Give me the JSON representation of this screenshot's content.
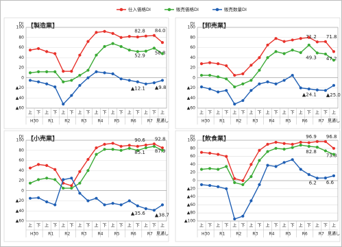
{
  "legend": [
    {
      "name": "仕入価格DI",
      "color": "#e8312a"
    },
    {
      "name": "販売価格DI",
      "color": "#3aaa35"
    },
    {
      "name": "販売数量DI",
      "color": "#1f5fb4"
    }
  ],
  "chart_data": [
    {
      "type": "line",
      "title": "【製造業】",
      "y_label": "DI",
      "categories": [
        "上",
        "下",
        "上",
        "下",
        "上",
        "下",
        "上",
        "下",
        "上",
        "下",
        "上",
        "下",
        "上",
        "下",
        "上",
        "下",
        "上"
      ],
      "year_labels": [
        "H30",
        "R1",
        "R2",
        "R3",
        "R4",
        "R5",
        "R6",
        "R7",
        "見通し"
      ],
      "ylim": [
        -60,
        100
      ],
      "yticks": [
        {
          "value": -60,
          "label": "▲60"
        },
        {
          "value": -40,
          "label": "▲40"
        },
        {
          "value": -20,
          "label": "▲20"
        },
        0,
        20,
        40,
        60,
        80,
        100
      ],
      "series": [
        {
          "color": "#e8312a",
          "values": [
            55,
            58,
            52,
            48,
            13,
            13,
            45,
            72,
            90,
            92,
            88,
            80,
            82,
            81,
            82.8,
            84.0,
            70
          ],
          "value_labels": [
            null,
            null,
            null,
            null,
            null,
            null,
            null,
            null,
            null,
            null,
            null,
            null,
            null,
            null,
            "82.8",
            "84.0",
            null
          ]
        },
        {
          "color": "#3aaa35",
          "values": [
            10,
            12,
            12,
            12,
            -8,
            -5,
            5,
            15,
            45,
            62,
            68,
            62,
            55,
            52,
            52.9,
            58.8,
            48
          ],
          "value_labels": [
            null,
            null,
            null,
            null,
            null,
            null,
            null,
            null,
            null,
            null,
            null,
            null,
            null,
            null,
            "52.9",
            "58.8",
            null
          ]
        },
        {
          "color": "#1f5fb4",
          "values": [
            -5,
            -8,
            -12,
            -18,
            -52,
            -35,
            -15,
            0,
            12,
            10,
            8,
            -2,
            -5,
            -8,
            -12.1,
            -9.8,
            -5
          ],
          "value_labels": [
            null,
            null,
            null,
            null,
            null,
            null,
            null,
            null,
            null,
            null,
            null,
            null,
            null,
            null,
            "▲12.1",
            "▲9.8",
            null
          ]
        }
      ]
    },
    {
      "type": "line",
      "title": "【卸売業】",
      "y_label": "DI",
      "categories": [
        "上",
        "下",
        "上",
        "下",
        "上",
        "下",
        "上",
        "下",
        "上",
        "下",
        "上",
        "下",
        "上",
        "下",
        "上",
        "下",
        "上"
      ],
      "year_labels": [
        "H30",
        "R1",
        "R2",
        "R3",
        "R4",
        "R5",
        "R6",
        "R7",
        "見通し"
      ],
      "ylim": [
        -60,
        100
      ],
      "yticks": [
        {
          "value": -60,
          "label": "▲60"
        },
        {
          "value": -40,
          "label": "▲40"
        },
        {
          "value": -20,
          "label": "▲20"
        },
        0,
        20,
        40,
        60,
        80,
        100
      ],
      "series": [
        {
          "color": "#e8312a",
          "values": [
            28,
            30,
            28,
            24,
            5,
            8,
            25,
            40,
            65,
            78,
            72,
            75,
            78,
            80,
            71.2,
            71.8,
            52
          ],
          "value_labels": [
            null,
            null,
            null,
            null,
            null,
            null,
            null,
            null,
            null,
            null,
            null,
            null,
            null,
            null,
            "71.2",
            "71.8",
            null
          ]
        },
        {
          "color": "#3aaa35",
          "values": [
            5,
            5,
            2,
            -2,
            -18,
            -12,
            -5,
            15,
            40,
            52,
            48,
            55,
            50,
            65,
            49.3,
            47.2,
            35
          ],
          "value_labels": [
            null,
            null,
            null,
            null,
            null,
            null,
            null,
            null,
            null,
            null,
            null,
            null,
            null,
            null,
            "49.3",
            "47.2",
            null
          ]
        },
        {
          "color": "#1f5fb4",
          "values": [
            -18,
            -22,
            -28,
            -25,
            -52,
            -45,
            -25,
            -12,
            -8,
            -12,
            -5,
            5,
            -20,
            -22,
            -24.1,
            -25.0,
            -15
          ],
          "value_labels": [
            null,
            null,
            null,
            null,
            null,
            null,
            null,
            null,
            null,
            null,
            null,
            null,
            null,
            null,
            "▲24.1",
            "▲25.0",
            null
          ]
        }
      ]
    },
    {
      "type": "line",
      "title": "【小売業】",
      "y_label": "DI",
      "categories": [
        "上",
        "下",
        "上",
        "下",
        "上",
        "下",
        "上",
        "下",
        "上",
        "下",
        "上",
        "下",
        "上",
        "下",
        "上",
        "下",
        "上"
      ],
      "year_labels": [
        "H30",
        "R1",
        "R2",
        "R3",
        "R4",
        "R5",
        "R6",
        "R7",
        "見通し"
      ],
      "ylim": [
        -60,
        100
      ],
      "yticks": [
        {
          "value": -60,
          "label": "▲60"
        },
        {
          "value": -40,
          "label": "▲40"
        },
        {
          "value": -20,
          "label": "▲20"
        },
        0,
        20,
        40,
        60,
        80,
        100
      ],
      "series": [
        {
          "color": "#e8312a",
          "values": [
            45,
            52,
            50,
            42,
            15,
            10,
            38,
            62,
            85,
            92,
            94,
            88,
            90,
            88,
            90.6,
            92.8,
            85
          ],
          "value_labels": [
            null,
            null,
            null,
            null,
            null,
            null,
            null,
            null,
            null,
            null,
            null,
            null,
            null,
            null,
            "90.6",
            "92.8",
            null
          ]
        },
        {
          "color": "#3aaa35",
          "values": [
            15,
            22,
            25,
            22,
            5,
            5,
            15,
            40,
            72,
            82,
            82,
            80,
            84,
            80,
            85.1,
            87.9,
            80
          ],
          "value_labels": [
            null,
            null,
            null,
            null,
            null,
            null,
            null,
            null,
            null,
            null,
            null,
            null,
            null,
            null,
            "85.1",
            "87.9",
            null
          ]
        },
        {
          "color": "#1f5fb4",
          "values": [
            -15,
            -14,
            -22,
            -28,
            22,
            25,
            -5,
            -20,
            -15,
            -28,
            -25,
            -28,
            -20,
            -30,
            -35.6,
            -38.7,
            -28
          ],
          "value_labels": [
            null,
            null,
            null,
            null,
            null,
            null,
            null,
            null,
            null,
            null,
            null,
            null,
            null,
            null,
            "▲35.6",
            "▲38.7",
            null
          ]
        }
      ]
    },
    {
      "type": "line",
      "title": "【飲食業】",
      "y_label": "DI",
      "categories": [
        "上",
        "下",
        "上",
        "下",
        "上",
        "下",
        "上",
        "下",
        "上",
        "下",
        "上",
        "下",
        "上",
        "下",
        "上",
        "下",
        "上"
      ],
      "year_labels": [
        "H30",
        "R1",
        "R2",
        "R3",
        "R4",
        "R5",
        "R6",
        "R7",
        "見通し"
      ],
      "ylim": [
        -100,
        100
      ],
      "yticks": [
        {
          "value": -100,
          "label": "▲100"
        },
        {
          "value": -80,
          "label": "▲80"
        },
        {
          "value": -60,
          "label": "▲60"
        },
        {
          "value": -40,
          "label": "▲40"
        },
        {
          "value": -20,
          "label": "▲20"
        },
        0,
        20,
        40,
        60,
        80,
        100
      ],
      "series": [
        {
          "color": "#e8312a",
          "values": [
            70,
            68,
            65,
            60,
            5,
            0,
            40,
            75,
            90,
            95,
            92,
            90,
            95,
            94,
            96.9,
            96.8,
            80
          ],
          "value_labels": [
            null,
            null,
            null,
            null,
            null,
            null,
            null,
            null,
            null,
            null,
            null,
            null,
            null,
            null,
            "96.9",
            "96.8",
            null
          ]
        },
        {
          "color": "#3aaa35",
          "values": [
            28,
            30,
            28,
            35,
            -5,
            -10,
            10,
            50,
            72,
            80,
            78,
            82,
            88,
            85,
            82.8,
            73.8,
            65
          ],
          "value_labels": [
            null,
            null,
            null,
            null,
            null,
            null,
            null,
            null,
            null,
            null,
            null,
            null,
            null,
            null,
            "82.8",
            "73.8",
            null
          ]
        },
        {
          "color": "#1f5fb4",
          "values": [
            -10,
            -12,
            -15,
            -20,
            -95,
            -88,
            -50,
            -10,
            38,
            35,
            45,
            52,
            28,
            15,
            6.2,
            6.6,
            12
          ],
          "value_labels": [
            null,
            null,
            null,
            null,
            null,
            null,
            null,
            null,
            null,
            null,
            null,
            null,
            null,
            null,
            "6.2",
            "6.6",
            null
          ]
        }
      ]
    }
  ]
}
